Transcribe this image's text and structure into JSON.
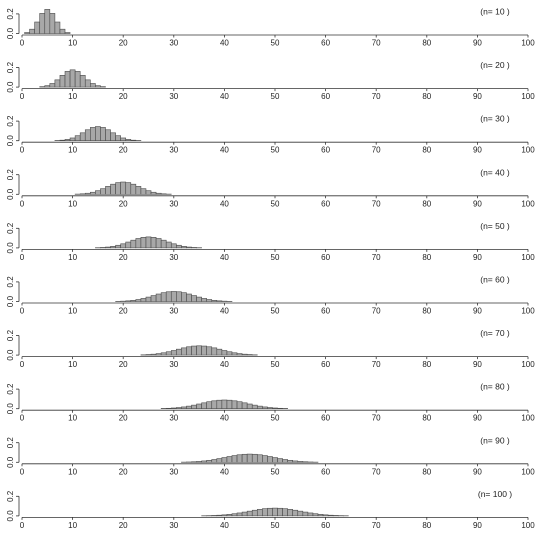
{
  "chart_data": {
    "type": "bar",
    "description_type": "binomial-distribution-small-multiples",
    "p": 0.5,
    "x_ticks": [
      0,
      10,
      20,
      30,
      40,
      50,
      60,
      70,
      80,
      90,
      100
    ],
    "xlim": [
      0,
      100
    ],
    "y_ticks": [
      0.0,
      0.2
    ],
    "y_tick_labels": [
      "0.0",
      "0.2"
    ],
    "ylim": [
      0,
      0.3
    ],
    "grid": false,
    "panels": [
      {
        "label": "(n=  10 )",
        "n": 10
      },
      {
        "label": "(n=  20 )",
        "n": 20
      },
      {
        "label": "(n=  30 )",
        "n": 30
      },
      {
        "label": "(n=  40 )",
        "n": 40
      },
      {
        "label": "(n=  50 )",
        "n": 50
      },
      {
        "label": "(n=  60 )",
        "n": 60
      },
      {
        "label": "(n=  70 )",
        "n": 70
      },
      {
        "label": "(n=  80 )",
        "n": 80
      },
      {
        "label": "(n=  90 )",
        "n": 90
      },
      {
        "label": "(n=  100 )",
        "n": 100
      }
    ]
  }
}
